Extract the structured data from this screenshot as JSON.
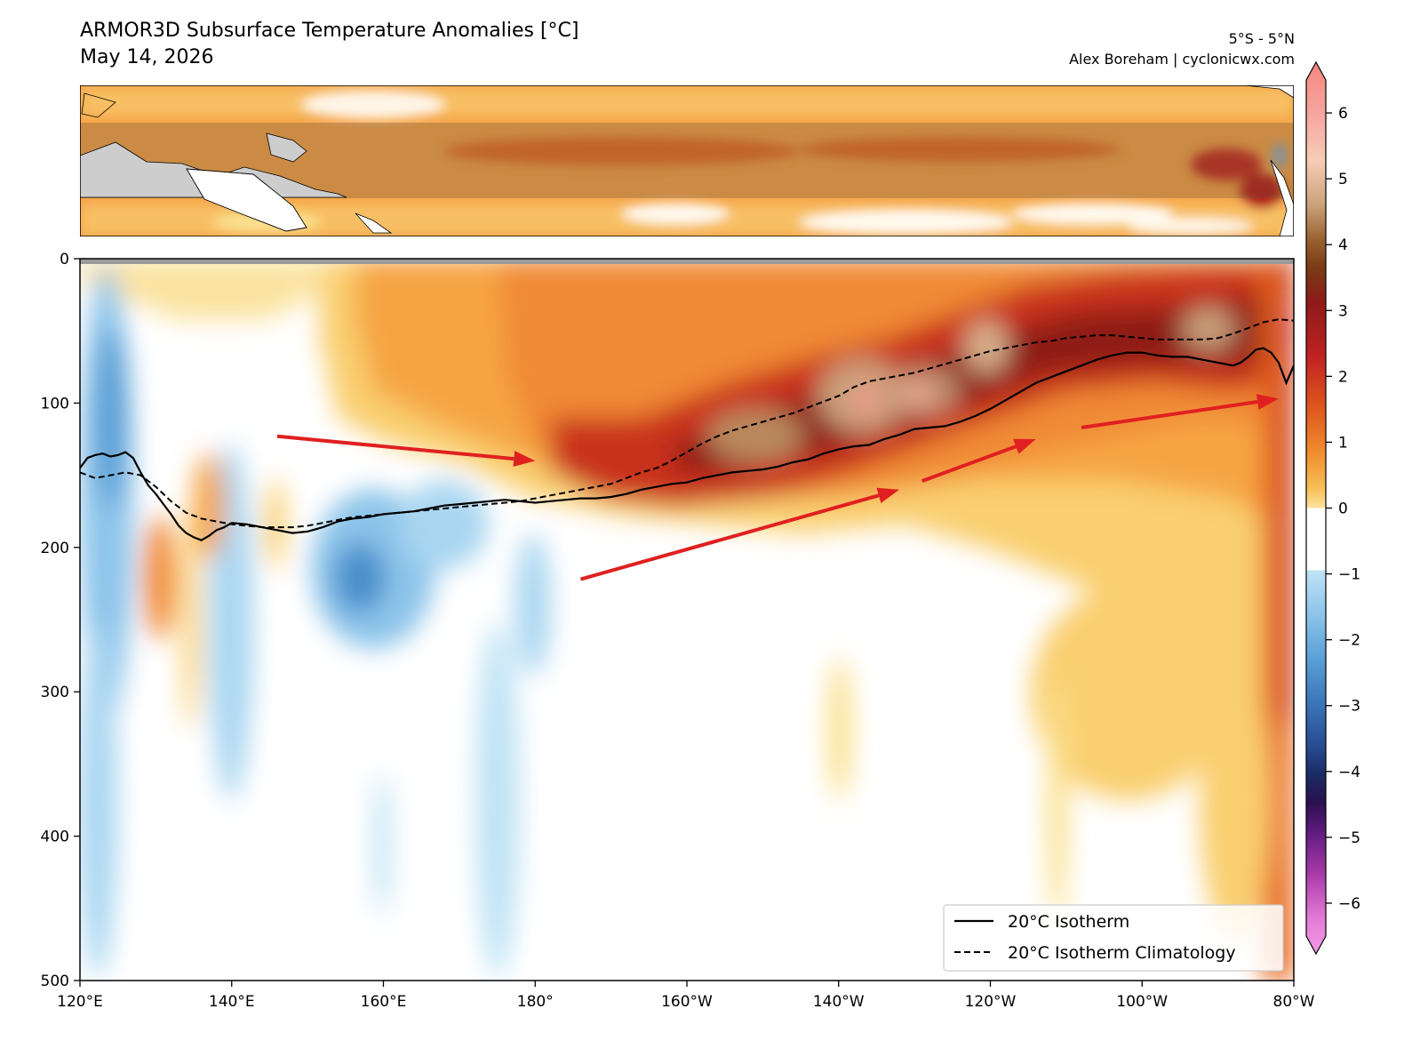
{
  "header": {
    "title": "ARMOR3D Subsurface Temperature Anomalies [°C]",
    "date": "May 14, 2026",
    "region": "5°S - 5°N",
    "credit": "Alex Boreham | cyclonicwx.com"
  },
  "chart_data": {
    "type": "heatmap",
    "title": "ARMOR3D Subsurface Temperature Anomalies [°C]",
    "subtitle": "May 14, 2026",
    "xlabel": "",
    "ylabel": "",
    "x_ticks": [
      "120°E",
      "140°E",
      "160°E",
      "180°",
      "160°W",
      "140°W",
      "120°W",
      "100°W",
      "80°W"
    ],
    "x_range_lon_east": [
      120,
      280
    ],
    "y_ticks": [
      0,
      100,
      200,
      300,
      400,
      500
    ],
    "y_range_depth": [
      0,
      500
    ],
    "y_inverted": true,
    "colorbar": {
      "ticks": [
        6,
        5,
        4,
        3,
        2,
        1,
        0,
        -1,
        -2,
        -3,
        -4,
        -5,
        -6
      ],
      "range": [
        -6.5,
        6.5
      ],
      "extend": "both"
    },
    "legend": {
      "position": "lower-right",
      "entries": [
        {
          "label": "20°C Isotherm",
          "style": "solid"
        },
        {
          "label": "20°C Isotherm Climatology",
          "style": "dashed"
        }
      ]
    },
    "series": [
      {
        "name": "20°C Isotherm",
        "style": "solid",
        "lon": [
          120,
          121,
          122,
          123,
          124,
          125,
          126,
          127,
          128,
          129,
          130,
          131,
          132,
          133,
          134,
          135,
          136,
          137,
          138,
          139,
          140,
          142,
          144,
          146,
          148,
          150,
          152,
          154,
          156,
          158,
          160,
          162,
          164,
          166,
          168,
          170,
          172,
          174,
          176,
          178,
          180,
          182,
          184,
          186,
          188,
          190,
          192,
          194,
          196,
          198,
          200,
          202,
          204,
          206,
          208,
          210,
          212,
          214,
          216,
          218,
          220,
          222,
          224,
          226,
          228,
          230,
          232,
          234,
          236,
          238,
          240,
          242,
          244,
          246,
          248,
          250,
          252,
          254,
          256,
          258,
          260,
          262,
          264,
          266,
          268,
          270,
          272,
          273,
          274,
          275,
          276,
          277,
          278,
          279,
          280
        ],
        "depth": [
          145,
          138,
          136,
          135,
          137,
          136,
          134,
          138,
          148,
          157,
          163,
          170,
          177,
          185,
          190,
          193,
          195,
          192,
          188,
          186,
          183,
          184,
          186,
          188,
          190,
          189,
          186,
          182,
          180,
          179,
          177,
          176,
          175,
          173,
          171,
          170,
          169,
          168,
          167,
          168,
          169,
          168,
          167,
          166,
          166,
          165,
          163,
          160,
          158,
          156,
          155,
          152,
          150,
          148,
          147,
          146,
          144,
          141,
          139,
          135,
          132,
          130,
          129,
          125,
          122,
          118,
          117,
          116,
          113,
          109,
          104,
          98,
          92,
          86,
          82,
          78,
          74,
          70,
          67,
          65,
          65,
          67,
          68,
          68,
          70,
          72,
          74,
          72,
          68,
          63,
          62,
          65,
          72,
          86,
          74
        ]
      },
      {
        "name": "20°C Isotherm Climatology",
        "style": "dashed",
        "lon": [
          120,
          122,
          124,
          126,
          128,
          130,
          132,
          134,
          136,
          138,
          140,
          142,
          144,
          146,
          148,
          150,
          152,
          154,
          156,
          158,
          160,
          162,
          164,
          166,
          168,
          170,
          172,
          174,
          176,
          178,
          180,
          182,
          184,
          186,
          188,
          190,
          192,
          194,
          196,
          198,
          200,
          202,
          204,
          206,
          208,
          210,
          212,
          214,
          216,
          218,
          220,
          222,
          224,
          226,
          228,
          230,
          232,
          234,
          236,
          238,
          240,
          242,
          244,
          246,
          248,
          250,
          252,
          254,
          256,
          258,
          260,
          262,
          264,
          266,
          268,
          270,
          272,
          274,
          276,
          278,
          280
        ],
        "depth": [
          148,
          152,
          150,
          148,
          150,
          158,
          168,
          176,
          180,
          182,
          184,
          185,
          186,
          186,
          186,
          185,
          183,
          181,
          179,
          178,
          177,
          176,
          175,
          174,
          173,
          172,
          171,
          170,
          169,
          168,
          166,
          164,
          162,
          160,
          158,
          156,
          152,
          148,
          145,
          140,
          134,
          128,
          123,
          119,
          116,
          113,
          110,
          107,
          103,
          99,
          95,
          89,
          85,
          83,
          81,
          79,
          76,
          73,
          70,
          67,
          64,
          62,
          60,
          58,
          57,
          55,
          54,
          53,
          53,
          54,
          55,
          56,
          56,
          56,
          56,
          55,
          52,
          48,
          44,
          42,
          43
        ]
      }
    ],
    "annotations": [
      {
        "type": "arrow",
        "color": "#e02020",
        "from": {
          "lon": 146,
          "depth": 123
        },
        "to": {
          "lon": 180,
          "depth": 140
        }
      },
      {
        "type": "arrow",
        "color": "#e02020",
        "from": {
          "lon": 186,
          "depth": 222
        },
        "to": {
          "lon": 228,
          "depth": 160
        }
      },
      {
        "type": "arrow",
        "color": "#e02020",
        "from": {
          "lon": 231,
          "depth": 154
        },
        "to": {
          "lon": 246,
          "depth": 125
        }
      },
      {
        "type": "arrow",
        "color": "#e02020",
        "from": {
          "lon": 252,
          "depth": 117
        },
        "to": {
          "lon": 278,
          "depth": 97
        }
      }
    ]
  }
}
